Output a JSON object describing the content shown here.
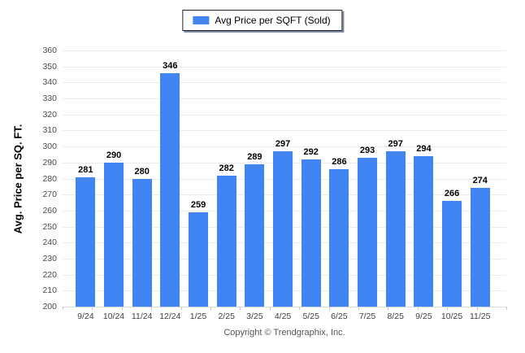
{
  "legend": {
    "label": "Avg Price per SQFT (Sold)",
    "swatch_color": "#4184f3"
  },
  "chart_data": {
    "type": "bar",
    "title": "",
    "categories": [
      "9/24",
      "10/24",
      "11/24",
      "12/24",
      "1/25",
      "2/25",
      "3/25",
      "4/25",
      "5/25",
      "6/25",
      "7/25",
      "8/25",
      "9/25",
      "10/25",
      "11/25"
    ],
    "values": [
      281,
      290,
      280,
      346,
      259,
      282,
      289,
      297,
      292,
      286,
      293,
      297,
      294,
      266,
      274
    ],
    "series_name": "Avg Price per SQFT (Sold)",
    "xlabel": "",
    "ylabel": "Avg. Price per SQ. FT.",
    "ylim": [
      200,
      360
    ],
    "ytick_step": 10,
    "grid": true,
    "legend_position": "top-center",
    "bar_color": "#4184f3",
    "grid_color": "#ebebeb",
    "value_labels": true
  },
  "footer": {
    "copyright": "Copyright © Trendgraphix, Inc."
  }
}
